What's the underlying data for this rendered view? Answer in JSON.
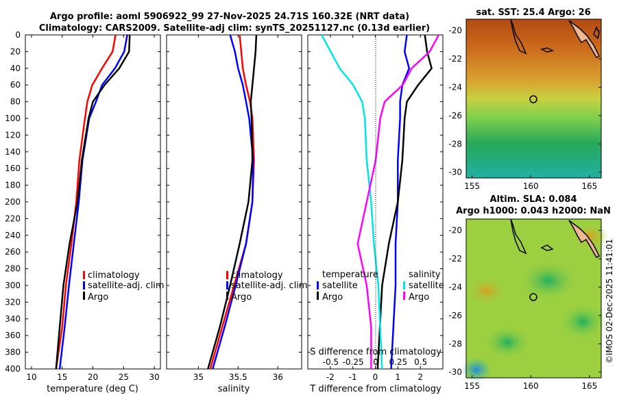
{
  "header": {
    "title_line1": "Argo profile: aoml 5906922_99 27-Nov-2025 24.71S 160.32E (NRT data)",
    "title_line2": "Climatology: CARS2009. Satellite-adj clim: synTS_20251127.nc (0.13d earlier)"
  },
  "watermark": "©IMOS 02-Dec-2025 11:41:01",
  "colors": {
    "climatology": "#ff0000",
    "satellite": "#0000ff",
    "argo": "#000000",
    "sat_salinity": "#00e5e5",
    "clim_salinity_diff": "#ff00ff"
  },
  "depth_ticks": [
    "0",
    "20",
    "40",
    "60",
    "80",
    "100",
    "120",
    "140",
    "160",
    "180",
    "200",
    "220",
    "240",
    "260",
    "280",
    "300",
    "320",
    "340",
    "360",
    "380",
    "400"
  ],
  "chart_data": [
    {
      "type": "line",
      "id": "temperature",
      "xlabel": "temperature (deg C)",
      "ylabel": "depth",
      "xlim": [
        9,
        31
      ],
      "ylim": [
        400,
        0
      ],
      "xticks": [
        "10",
        "15",
        "20",
        "25",
        "30"
      ],
      "depth": [
        0,
        20,
        40,
        60,
        80,
        100,
        150,
        200,
        250,
        300,
        350,
        400
      ],
      "series": [
        {
          "name": "climatology",
          "key": "climatology",
          "values": [
            23.7,
            23.2,
            21.5,
            19.9,
            19.1,
            18.7,
            17.8,
            17.3,
            16.5,
            15.6,
            15.0,
            14.0
          ]
        },
        {
          "name": "satellite-adj. clim",
          "key": "satellite",
          "values": [
            25.6,
            25.1,
            23.6,
            21.5,
            20.5,
            19.4,
            18.3,
            17.7,
            16.9,
            16.1,
            15.4,
            14.6
          ]
        },
        {
          "name": "Argo",
          "key": "argo",
          "values": [
            26.0,
            25.9,
            24.3,
            21.9,
            20.0,
            19.3,
            18.2,
            17.5,
            16.2,
            15.2,
            14.6,
            14.0
          ]
        }
      ],
      "legend": [
        "climatology",
        "satellite-adj. clim",
        "Argo"
      ]
    },
    {
      "type": "line",
      "id": "salinity",
      "xlabel": "salinity",
      "ylabel": "depth",
      "xlim": [
        34.6,
        36.3
      ],
      "ylim": [
        400,
        0
      ],
      "xticks": [
        "35",
        "35.5",
        "36"
      ],
      "depth": [
        0,
        20,
        40,
        60,
        80,
        100,
        150,
        200,
        250,
        300,
        350,
        400
      ],
      "series": [
        {
          "name": "climatology",
          "key": "climatology",
          "values": [
            35.52,
            35.54,
            35.56,
            35.6,
            35.65,
            35.68,
            35.7,
            35.68,
            35.6,
            35.45,
            35.3,
            35.15
          ]
        },
        {
          "name": "satellite-adj. clim",
          "key": "satellite",
          "values": [
            35.4,
            35.46,
            35.5,
            35.56,
            35.6,
            35.64,
            35.69,
            35.68,
            35.6,
            35.47,
            35.33,
            35.18
          ]
        },
        {
          "name": "Argo",
          "key": "argo",
          "values": [
            35.73,
            35.72,
            35.7,
            35.68,
            35.66,
            35.67,
            35.68,
            35.63,
            35.52,
            35.4,
            35.27,
            35.12
          ]
        }
      ],
      "legend": [
        "climatology",
        "satellite-adj. clim",
        "Argo"
      ]
    },
    {
      "type": "line",
      "id": "difference",
      "xlabel": "T difference from climatology",
      "xlabel_top": "S difference from climatology",
      "xlim": [
        -3,
        3
      ],
      "ylim": [
        400,
        0
      ],
      "xticks": [
        "-2",
        "-1",
        "0",
        "1",
        "2"
      ],
      "s_ticks": [
        "-0.5",
        "-0.25",
        "0",
        "0.25",
        "0.5"
      ],
      "depth": [
        0,
        20,
        40,
        60,
        80,
        100,
        150,
        200,
        250,
        300,
        350,
        400
      ],
      "series": [
        {
          "name": "temperature satellite",
          "key": "satellite",
          "values": [
            1.4,
            1.3,
            1.5,
            1.2,
            1.1,
            1.1,
            1.0,
            1.0,
            0.9,
            0.9,
            0.8,
            0.7
          ]
        },
        {
          "name": "temperature Argo",
          "key": "argo",
          "values": [
            2.2,
            2.3,
            2.5,
            1.9,
            1.4,
            1.3,
            1.2,
            1.0,
            0.6,
            0.3,
            0.2,
            0.1
          ]
        },
        {
          "name": "salinity satellite",
          "key": "sat_salinity",
          "values": [
            -0.6,
            -0.5,
            -0.4,
            -0.25,
            -0.15,
            -0.12,
            -0.1,
            -0.05,
            -0.02,
            0.03,
            0.05,
            0.07
          ]
        },
        {
          "name": "salinity Argo",
          "key": "clim_salinity_diff",
          "values": [
            0.7,
            0.6,
            0.4,
            0.3,
            0.1,
            0.05,
            0.0,
            -0.1,
            -0.2,
            -0.1,
            -0.05,
            -0.05
          ]
        }
      ],
      "legend_temperature": {
        "title": "temperature",
        "items": [
          "satellite",
          "Argo"
        ]
      },
      "legend_salinity": {
        "title": "salinity",
        "items": [
          "satellite",
          "Argo"
        ]
      }
    },
    {
      "type": "heatmap",
      "id": "sst_map",
      "title": "sat. SST: 25.4 Argo: 26",
      "xticks": [
        "155",
        "160",
        "165"
      ],
      "yticks": [
        "-20",
        "-22",
        "-24",
        "-26",
        "-28",
        "-30"
      ],
      "marker": {
        "lon": 160.32,
        "lat": -24.71
      }
    },
    {
      "type": "heatmap",
      "id": "sla_map",
      "title_line1": "Altim. SLA: 0.084",
      "title_line2": "Argo h1000: 0.043 h2000: NaN",
      "xticks": [
        "155",
        "160",
        "165"
      ],
      "yticks": [
        "-20",
        "-22",
        "-24",
        "-26",
        "-28",
        "-30"
      ],
      "marker": {
        "lon": 160.32,
        "lat": -24.71
      }
    }
  ]
}
